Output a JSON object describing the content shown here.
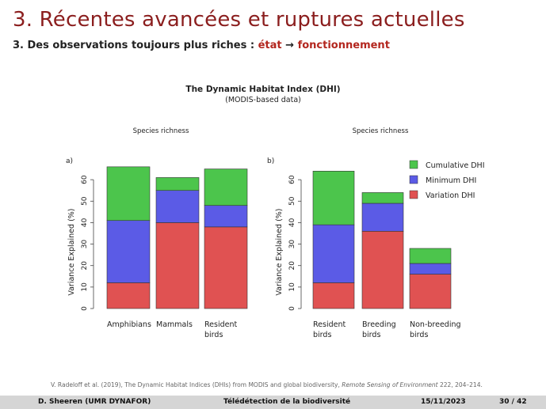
{
  "slide": {
    "title": "3. Récentes avancées et ruptures actuelles",
    "subtitle_prefix": "3. Des observations toujours plus riches : ",
    "subtitle_etat": "état",
    "subtitle_arrow": "→",
    "subtitle_fonctionnement": "fonctionnement"
  },
  "figure": {
    "title": "The Dynamic Habitat Index (DHI)",
    "subtitle": "(MODIS-based data)"
  },
  "chart_data": [
    {
      "type": "bar",
      "stacked": true,
      "panel_label": "a)",
      "title": "Species richness",
      "ylabel": "Variance Explained (%)",
      "ylim": [
        0,
        70
      ],
      "yticks": [
        0,
        10,
        20,
        30,
        40,
        50,
        60
      ],
      "categories": [
        [
          "Amphibians"
        ],
        [
          "Mammals"
        ],
        [
          "Resident",
          "birds"
        ]
      ],
      "series": [
        {
          "name": "Variation DHI",
          "color": "#e05252",
          "values": [
            12,
            40,
            38
          ]
        },
        {
          "name": "Minimum DHI",
          "color": "#5b5be6",
          "values": [
            29,
            15,
            10
          ]
        },
        {
          "name": "Cumulative DHI",
          "color": "#4cc54c",
          "values": [
            25,
            6,
            17
          ]
        }
      ]
    },
    {
      "type": "bar",
      "stacked": true,
      "panel_label": "b)",
      "title": "Species richness",
      "ylabel": "Variance Explained (%)",
      "ylim": [
        0,
        70
      ],
      "yticks": [
        0,
        10,
        20,
        30,
        40,
        50,
        60
      ],
      "categories": [
        [
          "Resident",
          "birds"
        ],
        [
          "Breeding",
          "birds"
        ],
        [
          "Non-breeding",
          "birds"
        ]
      ],
      "series": [
        {
          "name": "Variation DHI",
          "color": "#e05252",
          "values": [
            12,
            36,
            16
          ]
        },
        {
          "name": "Minimum DHI",
          "color": "#5b5be6",
          "values": [
            27,
            13,
            5
          ]
        },
        {
          "name": "Cumulative DHI",
          "color": "#4cc54c",
          "values": [
            25,
            5,
            7
          ]
        }
      ],
      "legend": {
        "position": "top-right",
        "entries": [
          {
            "name": "Cumulative DHI",
            "color": "#4cc54c"
          },
          {
            "name": "Minimum DHI",
            "color": "#5b5be6"
          },
          {
            "name": "Variation DHI",
            "color": "#e05252"
          }
        ]
      }
    }
  ],
  "citation": {
    "text": "V. Radeloff et al. (2019), The Dynamic Habitat Indices (DHIs) from MODIS and global biodiversity, ",
    "journal": "Remote Sensing of Environment",
    "rest": " 222, 204–214."
  },
  "footer": {
    "author": "D. Sheeren  (UMR DYNAFOR)",
    "course": "Télédétection de la biodiversité",
    "date": "15/11/2023",
    "page": "30 / 42"
  }
}
